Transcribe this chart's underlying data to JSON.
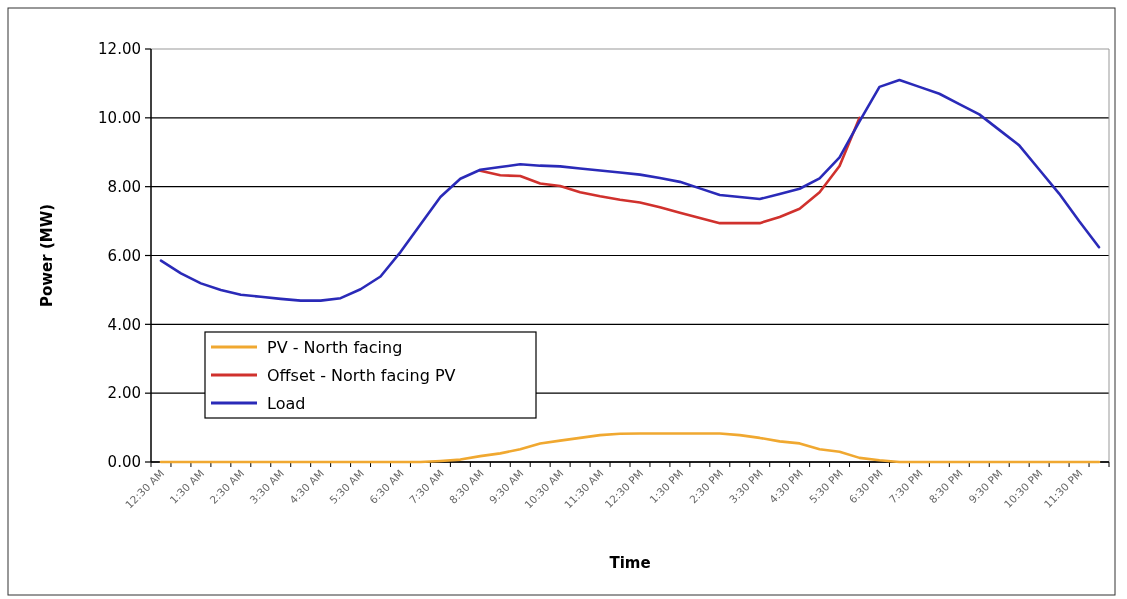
{
  "chart_data": {
    "type": "line",
    "xlabel": "Time",
    "ylabel": "Power (MW)",
    "categories": [
      "12:30 AM",
      null,
      "1:30 AM",
      null,
      "2:30 AM",
      null,
      "3:30 AM",
      null,
      "4:30 AM",
      null,
      "5:30 AM",
      null,
      "6:30 AM",
      null,
      "7:30 AM",
      null,
      "8:30 AM",
      null,
      "9:30 AM",
      null,
      "10:30 AM",
      null,
      "11:30 AM",
      null,
      "12:30 PM",
      null,
      "1:30 PM",
      null,
      "2:30 PM",
      null,
      "3:30 PM",
      null,
      "4:30 PM",
      null,
      "5:30 PM",
      null,
      "6:30 PM",
      null,
      "7:30 PM",
      null,
      "8:30 PM",
      null,
      "9:30 PM",
      null,
      "10:30 PM",
      null,
      "11:30 PM",
      null
    ],
    "series": [
      {
        "name": "PV - North facing",
        "color": "#f0a830",
        "values": [
          0,
          0,
          0,
          0,
          0,
          0,
          0,
          0,
          0,
          0,
          0,
          0,
          0,
          0,
          0.03,
          0.07,
          0.17,
          0.25,
          0.37,
          0.54,
          0.62,
          0.7,
          0.78,
          0.82,
          0.83,
          0.83,
          0.83,
          0.83,
          0.83,
          0.78,
          0.7,
          0.6,
          0.54,
          0.37,
          0.3,
          0.12,
          0.05,
          0,
          0,
          0,
          0,
          0,
          0,
          0,
          0,
          0,
          0,
          0
        ]
      },
      {
        "name": "Offset - North facing PV",
        "color": "#d0312d",
        "values": [
          null,
          null,
          null,
          null,
          null,
          null,
          null,
          null,
          null,
          null,
          null,
          null,
          null,
          null,
          null,
          null,
          8.46,
          8.33,
          8.31,
          8.09,
          8.02,
          7.84,
          7.72,
          7.62,
          7.54,
          7.4,
          7.24,
          7.09,
          6.94,
          6.94,
          6.94,
          7.12,
          7.36,
          7.84,
          8.6,
          10.0,
          null,
          null,
          null,
          null,
          null,
          null,
          null,
          null,
          null,
          null,
          null,
          null
        ]
      },
      {
        "name": "Load",
        "color": "#2a2ab8",
        "values": [
          5.85,
          5.48,
          5.19,
          5.0,
          4.86,
          4.8,
          4.74,
          4.69,
          4.69,
          4.76,
          5.02,
          5.39,
          6.1,
          6.9,
          7.7,
          8.23,
          8.49,
          8.57,
          8.65,
          8.61,
          8.59,
          8.53,
          8.47,
          8.41,
          8.35,
          8.25,
          8.14,
          7.95,
          7.76,
          7.7,
          7.64,
          7.79,
          7.94,
          8.24,
          8.85,
          9.9,
          10.9,
          11.1,
          10.9,
          10.7,
          10.4,
          10.1,
          9.65,
          9.2,
          8.5,
          7.8,
          7.0,
          6.24
        ]
      }
    ],
    "ylim": [
      0,
      12
    ],
    "yticks": [
      {
        "value": 0,
        "label": "0.00"
      },
      {
        "value": 2,
        "label": "2.00"
      },
      {
        "value": 4,
        "label": "4.00"
      },
      {
        "value": 6,
        "label": "6.00"
      },
      {
        "value": 8,
        "label": "8.00"
      },
      {
        "value": 10,
        "label": "10.00"
      },
      {
        "value": 12,
        "label": "12.00"
      }
    ],
    "grid": "y",
    "legend": "left",
    "marker": "none",
    "line_style": "solid"
  }
}
